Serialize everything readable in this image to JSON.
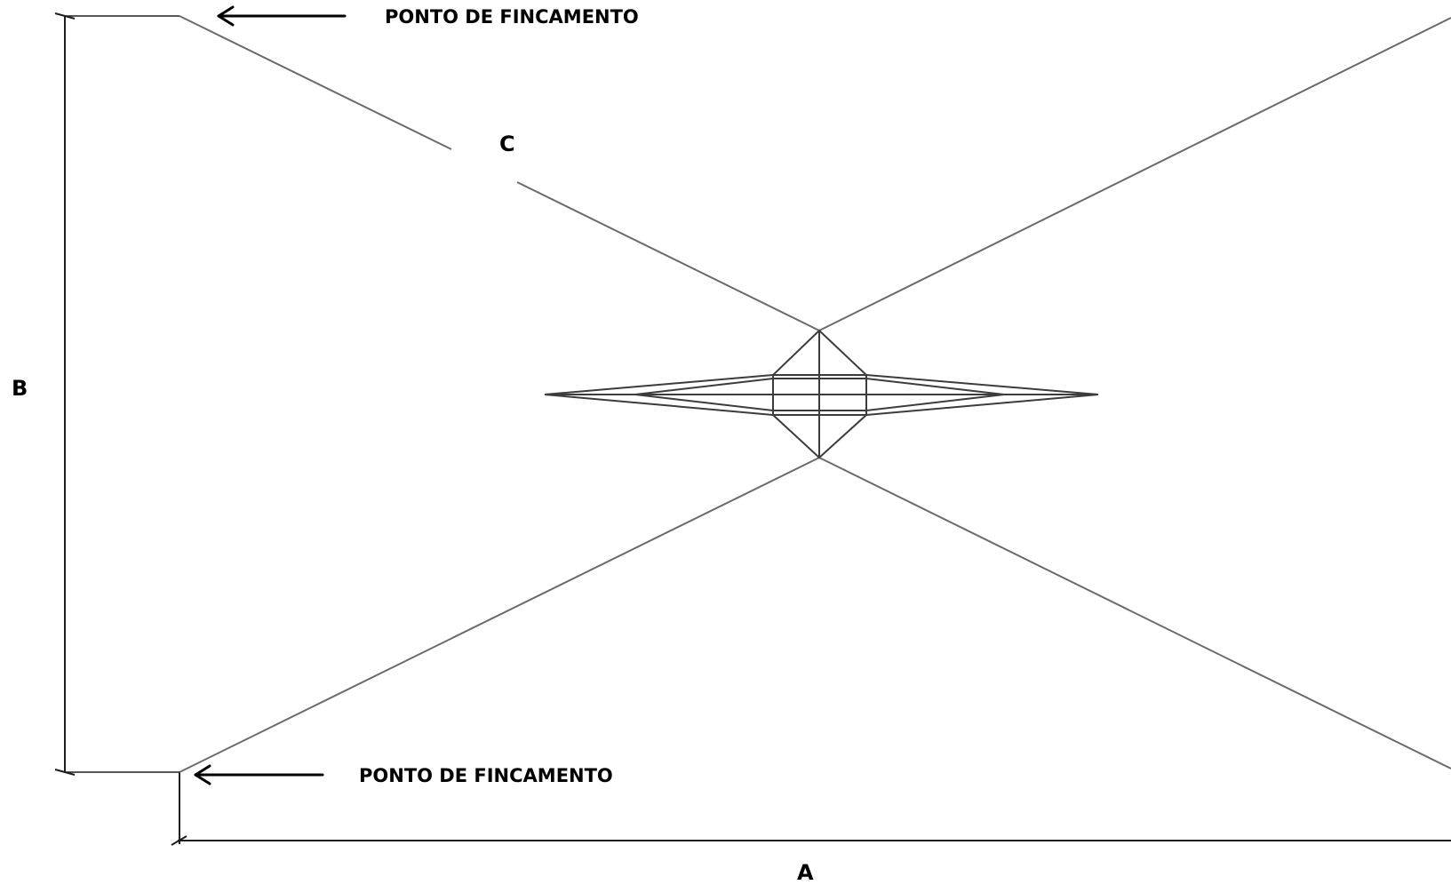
{
  "labels": {
    "dimension_a": "A",
    "dimension_b": "B",
    "dimension_c": "C",
    "anchor_point_top": "PONTO DE FINCAMENTO",
    "anchor_point_bottom": "PONTO DE FINCAMENTO"
  },
  "colors": {
    "line": "#6b6b6b",
    "dimension_line": "#1e1e1e",
    "center_detail": "#3c3c3c",
    "arrow": "#000000",
    "text": "#000000"
  }
}
